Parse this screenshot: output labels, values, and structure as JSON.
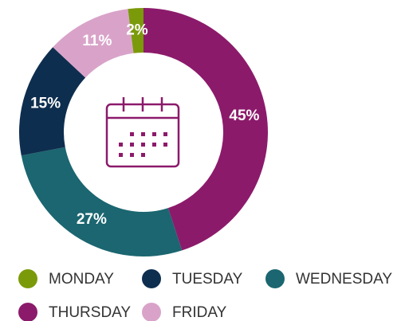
{
  "chart_data": {
    "type": "donut",
    "categories": [
      "MONDAY",
      "TUESDAY",
      "WEDNESDAY",
      "THURSDAY",
      "FRIDAY"
    ],
    "values": [
      2,
      15,
      27,
      45,
      11
    ],
    "value_labels": [
      "2%",
      "15%",
      "27%",
      "45%",
      "11%"
    ],
    "colors": [
      "#7b9a0a",
      "#0e2e4f",
      "#1b6670",
      "#8c1a6b",
      "#d9a3c9"
    ]
  }
}
